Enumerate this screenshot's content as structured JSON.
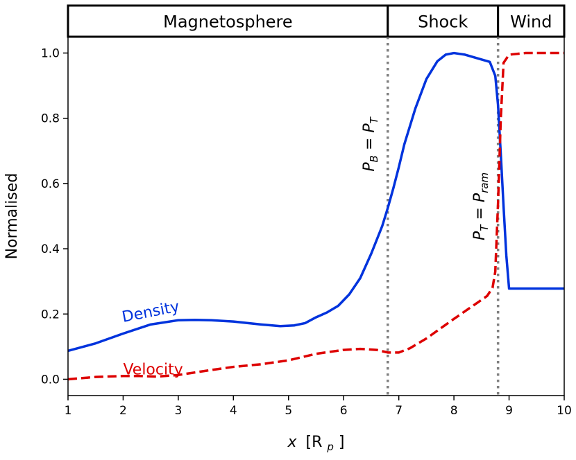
{
  "chart_data": {
    "type": "line",
    "xlabel_var": "x",
    "xlabel_unit_open": "[R",
    "xlabel_unit_sub": "p",
    "xlabel_unit_close": "]",
    "ylabel": "Normalised",
    "xlim": [
      1,
      10
    ],
    "ylim": [
      -0.05,
      1.05
    ],
    "x_ticks": [
      "1",
      "2",
      "3",
      "4",
      "5",
      "6",
      "7",
      "8",
      "9",
      "10"
    ],
    "y_ticks": [
      "0.0",
      "0.2",
      "0.4",
      "0.6",
      "0.8",
      "1.0"
    ],
    "regions": [
      {
        "label": "Magnetosphere",
        "x_start": 1,
        "x_end": 6.8
      },
      {
        "label": "Shock",
        "x_start": 6.8,
        "x_end": 8.8
      },
      {
        "label": "Wind",
        "x_start": 8.8,
        "x_end": 10
      }
    ],
    "boundaries": [
      {
        "x": 6.8,
        "label_main": "P",
        "label_sub1": "B",
        "label_eq": " = P",
        "label_sub2": "T",
        "label_x": 6.55,
        "label_y": 0.72
      },
      {
        "x": 8.8,
        "label_main": "P",
        "label_sub1": "T",
        "label_eq": " = P",
        "label_sub2": "ram",
        "label_x": 8.55,
        "label_y": 0.53
      }
    ],
    "series": [
      {
        "name": "Density",
        "color": "#0033dd",
        "style": "solid",
        "label_x": 2.0,
        "label_y": 0.175,
        "label_rotate": -11,
        "x": [
          1.0,
          1.5,
          2.0,
          2.5,
          3.0,
          3.3,
          3.6,
          4.0,
          4.5,
          4.85,
          5.1,
          5.3,
          5.5,
          5.7,
          5.9,
          6.1,
          6.3,
          6.5,
          6.7,
          6.8,
          6.9,
          7.0,
          7.1,
          7.3,
          7.5,
          7.7,
          7.85,
          8.0,
          8.2,
          8.4,
          8.65,
          8.75,
          8.8,
          8.85,
          8.9,
          8.95,
          9.0,
          9.5,
          10.0
        ],
        "y": [
          0.087,
          0.11,
          0.14,
          0.168,
          0.181,
          0.182,
          0.181,
          0.177,
          0.168,
          0.163,
          0.165,
          0.172,
          0.19,
          0.205,
          0.225,
          0.26,
          0.31,
          0.385,
          0.47,
          0.525,
          0.585,
          0.65,
          0.72,
          0.83,
          0.92,
          0.975,
          0.995,
          1.0,
          0.995,
          0.985,
          0.973,
          0.93,
          0.84,
          0.69,
          0.53,
          0.38,
          0.278,
          0.278,
          0.278
        ]
      },
      {
        "name": "Velocity",
        "color": "#dd0000",
        "style": "dashed",
        "label_x": 2.0,
        "label_y": 0.015,
        "label_rotate": 0,
        "x": [
          1.0,
          1.5,
          2.0,
          2.3,
          2.6,
          3.0,
          3.5,
          4.0,
          4.5,
          5.0,
          5.5,
          6.0,
          6.3,
          6.6,
          6.8,
          7.0,
          7.2,
          7.5,
          8.0,
          8.3,
          8.6,
          8.7,
          8.75,
          8.8,
          8.85,
          8.9,
          9.0,
          9.3,
          10.0
        ],
        "y": [
          0.0,
          0.007,
          0.01,
          0.01,
          0.008,
          0.013,
          0.026,
          0.038,
          0.046,
          0.058,
          0.078,
          0.09,
          0.093,
          0.09,
          0.082,
          0.082,
          0.095,
          0.125,
          0.185,
          0.22,
          0.255,
          0.28,
          0.33,
          0.54,
          0.8,
          0.97,
          0.995,
          1.0,
          1.0
        ]
      }
    ],
    "boundary_color": "#808080"
  }
}
